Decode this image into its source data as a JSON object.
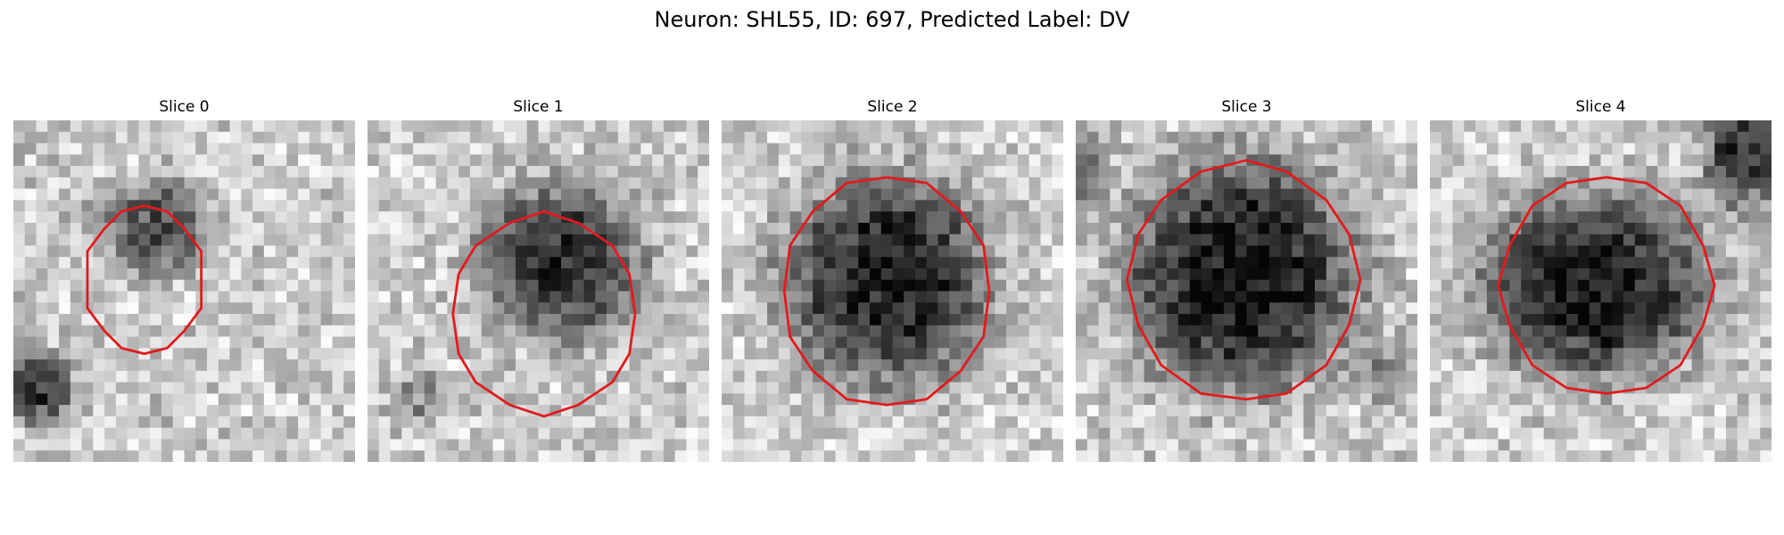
{
  "figure": {
    "title": "Neuron: SHL55, ID: 697, Predicted Label: DV"
  },
  "style": {
    "contour_color": "#e31a1c",
    "colormap": "grayscale"
  },
  "panels": [
    {
      "title": "Slice 0"
    },
    {
      "title": "Slice 1"
    },
    {
      "title": "Slice 2"
    },
    {
      "title": "Slice 3"
    },
    {
      "title": "Slice 4"
    }
  ]
}
